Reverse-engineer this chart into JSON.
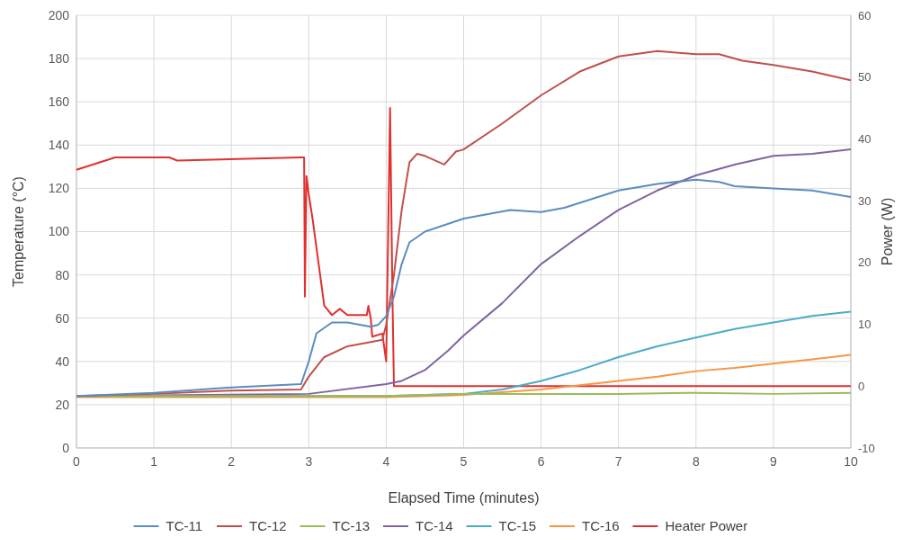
{
  "chart_data": {
    "type": "line",
    "xlabel": "Elapsed Time (minutes)",
    "ylabel": "Temperature (°C)",
    "y2label": "Power (W)",
    "xlim": [
      0,
      10
    ],
    "xticks": [
      0,
      1,
      2,
      3,
      4,
      5,
      6,
      7,
      8,
      9,
      10
    ],
    "ylim": [
      0,
      200
    ],
    "yticks": [
      0,
      20,
      40,
      60,
      80,
      100,
      120,
      140,
      160,
      180,
      200
    ],
    "y2lim": [
      -10,
      60
    ],
    "y2ticks": [
      -10,
      0,
      10,
      20,
      30,
      40,
      50,
      60
    ],
    "grid": true,
    "legend": "bottom",
    "marker": "none",
    "line_style": "solid",
    "series": [
      {
        "name": "TC-11",
        "color": "#5b8dbf",
        "x": [
          0,
          1,
          2,
          2.9,
          3,
          3.1,
          3.3,
          3.5,
          3.8,
          3.9,
          4,
          4.1,
          4.2,
          4.3,
          4.5,
          5,
          5.3,
          5.6,
          6,
          6.3,
          7,
          7.5,
          8,
          8.3,
          8.5,
          9,
          9.5,
          10
        ],
        "values": [
          24,
          25.5,
          28,
          29.5,
          40,
          53,
          58,
          58,
          56,
          57,
          61,
          70,
          85,
          95,
          100,
          106,
          108,
          110,
          109,
          111,
          119,
          122,
          124,
          123,
          121,
          120,
          119,
          116
        ]
      },
      {
        "name": "TC-12",
        "color": "#c0504d",
        "x": [
          0,
          1,
          2,
          2.9,
          3,
          3.2,
          3.5,
          3.8,
          3.95,
          4,
          4.1,
          4.2,
          4.3,
          4.4,
          4.5,
          4.75,
          4.9,
          5,
          5.5,
          6,
          6.5,
          7,
          7.5,
          8,
          8.3,
          8.6,
          9,
          9.5,
          10
        ],
        "values": [
          24,
          25,
          26.5,
          27,
          33,
          42,
          47,
          49,
          50,
          57,
          80,
          110,
          132,
          136,
          135,
          131,
          137,
          138,
          150,
          163,
          174,
          181,
          183.5,
          182,
          182,
          179,
          177,
          174,
          170
        ]
      },
      {
        "name": "TC-13",
        "color": "#9bbb59",
        "x": [
          0,
          2,
          4,
          5,
          6,
          7,
          8,
          9,
          10
        ],
        "values": [
          24,
          24,
          24,
          25,
          25,
          25,
          25.5,
          25,
          25.5
        ]
      },
      {
        "name": "TC-14",
        "color": "#8064a2",
        "x": [
          0,
          3,
          4,
          4.2,
          4.5,
          4.8,
          5,
          5.5,
          6,
          6.5,
          7,
          7.5,
          8,
          8.5,
          9,
          9.5,
          10
        ],
        "values": [
          24,
          25,
          29.5,
          31,
          36,
          45,
          52,
          67,
          85,
          98,
          110,
          119,
          126,
          131,
          135,
          136,
          138
        ]
      },
      {
        "name": "TC-15",
        "color": "#4bacc6",
        "x": [
          0,
          4,
          5,
          5.5,
          6,
          6.5,
          7,
          7.5,
          8,
          8.5,
          9,
          9.5,
          10
        ],
        "values": [
          24,
          24,
          25,
          27,
          31,
          36,
          42,
          47,
          51,
          55,
          58,
          61,
          63
        ]
      },
      {
        "name": "TC-16",
        "color": "#f79646",
        "x": [
          0,
          4,
          5,
          6,
          6.5,
          7,
          7.5,
          8,
          8.5,
          9,
          9.5,
          10
        ],
        "values": [
          23.5,
          23.5,
          24.5,
          27,
          29,
          31,
          33,
          35.5,
          37,
          39,
          41,
          43
        ]
      },
      {
        "name": "Heater Power",
        "color": "#e0302f",
        "axis": "y2",
        "x": [
          0,
          0.5,
          1.2,
          1.3,
          2.9,
          2.94,
          2.95,
          2.97,
          3.0,
          3.05,
          3.2,
          3.3,
          3.4,
          3.5,
          3.75,
          3.77,
          3.8,
          3.82,
          3.95,
          4.0,
          4.05,
          4.08,
          4.1,
          5,
          10
        ],
        "values": [
          35,
          37,
          37,
          36.5,
          37,
          37,
          14.5,
          34,
          31,
          27,
          13,
          11.5,
          12.5,
          11.5,
          11.5,
          13,
          11,
          8,
          8.5,
          4,
          45,
          15,
          0,
          0,
          0
        ]
      }
    ]
  }
}
